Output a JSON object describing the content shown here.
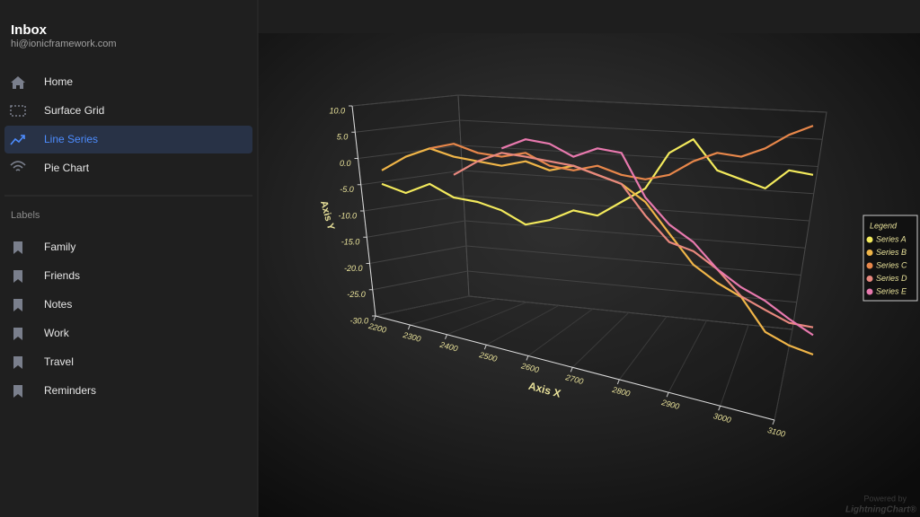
{
  "sidebar": {
    "title": "Inbox",
    "subtitle": "hi@ionicframework.com",
    "nav": [
      "Home",
      "Surface Grid",
      "Line Series",
      "Pie Chart"
    ],
    "labels_heading": "Labels",
    "labels": [
      "Family",
      "Friends",
      "Notes",
      "Work",
      "Travel",
      "Reminders"
    ]
  },
  "chart_data": {
    "type": "line3d",
    "x_label": "Axis X",
    "y_label": "Axis Y",
    "legend_title": "Legend",
    "x": [
      2200,
      2250,
      2300,
      2350,
      2400,
      2450,
      2500,
      2550,
      2600,
      2650,
      2700,
      2750,
      2800,
      2850,
      2900,
      2950,
      3000,
      3050,
      3100
    ],
    "xlim": [
      2200,
      3100
    ],
    "xticks": [
      2200,
      2300,
      2400,
      2500,
      2600,
      2700,
      2800,
      2900,
      3000,
      3100
    ],
    "ylim": [
      -30,
      10
    ],
    "yticks": [
      {
        "value": 10,
        "label": "10.0"
      },
      {
        "value": 5,
        "label": "5.0"
      },
      {
        "value": 0,
        "label": "0.0"
      },
      {
        "value": -5,
        "label": "-5.0"
      },
      {
        "value": -10,
        "label": "-10.0"
      },
      {
        "value": -15,
        "label": "-15.0"
      },
      {
        "value": -20,
        "label": "-20.0"
      },
      {
        "value": -25,
        "label": "-25.0"
      },
      {
        "value": -30,
        "label": "-30.0"
      }
    ],
    "series": [
      {
        "name": "Series A",
        "color": "#f3ea5c",
        "values": [
          -2.9,
          -4.3,
          -2.9,
          -5.0,
          -5.7,
          -7.0,
          -9.2,
          -8.5,
          -7.0,
          -7.8,
          -5.7,
          -3.6,
          1.9,
          4.0,
          -0.8,
          -2.2,
          -3.6,
          -0.8,
          -1.5
        ]
      },
      {
        "name": "Series B",
        "color": "#f0b548",
        "values": [
          -0.8,
          1.3,
          2.6,
          1.3,
          0.6,
          -0.1,
          0.6,
          -0.8,
          -0.1,
          -1.5,
          -2.9,
          -5.7,
          -10.6,
          -15.4,
          -18.2,
          -20.4,
          -25.8,
          -27.9,
          -29.3
        ]
      },
      {
        "name": "Series C",
        "color": "#e8874a",
        "values": [
          null,
          null,
          2.6,
          3.3,
          1.9,
          1.3,
          1.9,
          -0.1,
          -0.8,
          -0.1,
          -1.5,
          -2.2,
          -1.5,
          0.6,
          1.9,
          1.3,
          2.6,
          4.7,
          6.1
        ]
      },
      {
        "name": "Series D",
        "color": "#e8887e",
        "values": [
          null,
          null,
          null,
          -1.5,
          0.6,
          1.9,
          1.3,
          0.6,
          -0.1,
          -1.5,
          -2.9,
          -7.8,
          -11.9,
          -13.3,
          -16.1,
          -20.3,
          -22.4,
          -24.4,
          -25.1
        ]
      },
      {
        "name": "Series E",
        "color": "#e879ae",
        "values": [
          null,
          null,
          null,
          null,
          null,
          2.6,
          4.0,
          3.3,
          1.3,
          2.6,
          1.9,
          -5.0,
          -9.2,
          -11.9,
          -16.1,
          -18.9,
          -21.0,
          -23.8,
          -26.3
        ]
      }
    ]
  },
  "watermark": {
    "line1": "Powered by",
    "line2": "LightningChart®"
  }
}
